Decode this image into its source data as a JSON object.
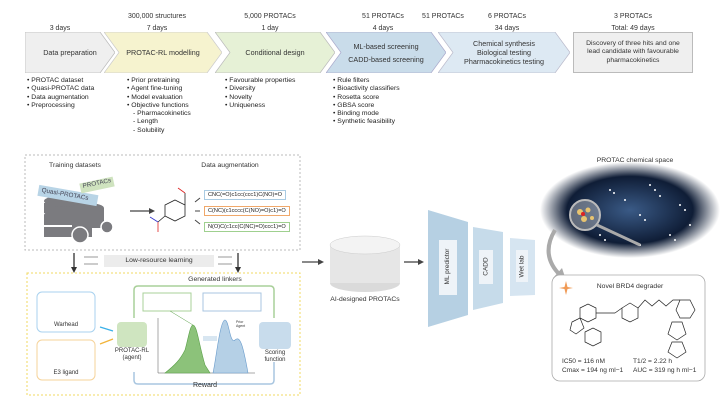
{
  "pipeline": [
    {
      "above": "",
      "duration": "3 days",
      "title_lines": [
        "Data preparation"
      ],
      "bullets": [
        "PROTAC dataset",
        "Quasi-PROTAC data",
        "Data augmentation",
        "Preprocessing"
      ],
      "color": "#efefef"
    },
    {
      "above": "300,000 structures",
      "duration": "7 days",
      "title_lines": [
        "PROTAC-RL modelling"
      ],
      "bullets": [
        "Prior pretraining",
        "Agent fine-tuning",
        "Model evaluation",
        "Objective functions"
      ],
      "sub_bullets": [
        "Pharmacokinetics",
        "Length",
        "Solubility"
      ],
      "color": "#f6f3cf"
    },
    {
      "above": "5,000 PROTACs",
      "duration": "1 day",
      "title_lines": [
        "Conditional design"
      ],
      "bullets": [
        "Favourable properties",
        "Diversity",
        "Novelty",
        "Uniqueness"
      ],
      "color": "#e6f1d6"
    },
    {
      "above": "51 PROTACs",
      "duration": "4 days",
      "title_lines": [
        "ML-based screening",
        "CADD-based screening"
      ],
      "bullets": [
        "Rule filters",
        "Bioactivity classifiers",
        "Rosetta score",
        "GBSA score",
        "Binding mode",
        "Synthetic feasibility"
      ],
      "color": "#c9dcea"
    },
    {
      "above": "6 PROTACs",
      "duration": "34 days",
      "title_lines": [
        "Chemical synthesis",
        "Biological testing",
        "Pharmacokinetics testing"
      ],
      "bullets": [],
      "color": "#dde9f3"
    },
    {
      "above": "3 PROTACs",
      "duration": "Total: 49 days",
      "title_lines": [
        "Discovery of three hits and one",
        "lead candidate with favourable",
        "pharmacokinetics"
      ],
      "bullets": [],
      "color": "#efefef"
    }
  ],
  "training": {
    "title": "Training datasets",
    "tag_protacs": "PROTACs",
    "tag_quasi": "Quasi-PROTACs"
  },
  "augmentation": {
    "title": "Data augmentation",
    "smiles": [
      "CNC(=O)c1cc(ccc1)C(NO)=O",
      "C(NC)(c1cccc(C(NO)=O)c1)=O",
      "N(O)C(c1cc(C(NC)=O)ccc1)=O"
    ],
    "colors": [
      "#a9cbe3",
      "#f0a86a",
      "#9fd08f"
    ]
  },
  "low_resource": "Low-resource learning",
  "rl": {
    "title": "Generated linkers",
    "warhead": "Warhead",
    "e3": "E3 ligand",
    "agent": [
      "PROTAC-RL",
      "(agent)"
    ],
    "scoring": [
      "Scoring",
      "function"
    ],
    "reward": "Reward",
    "legend": [
      "Prior",
      "Agent"
    ]
  },
  "designed": "AI-designed PROTACs",
  "funnel": [
    "ML predictor",
    "CADD",
    "Wet lab"
  ],
  "space_title": "PROTAC chemical space",
  "result": {
    "title": "Novel BRD4 degrader",
    "ic50": "IC50 = 116 nM",
    "cmax": "Cmax = 194 ng ml−1",
    "t12": "T1/2 = 2.22 h",
    "auc": "AUC = 319 ng h ml−1"
  }
}
